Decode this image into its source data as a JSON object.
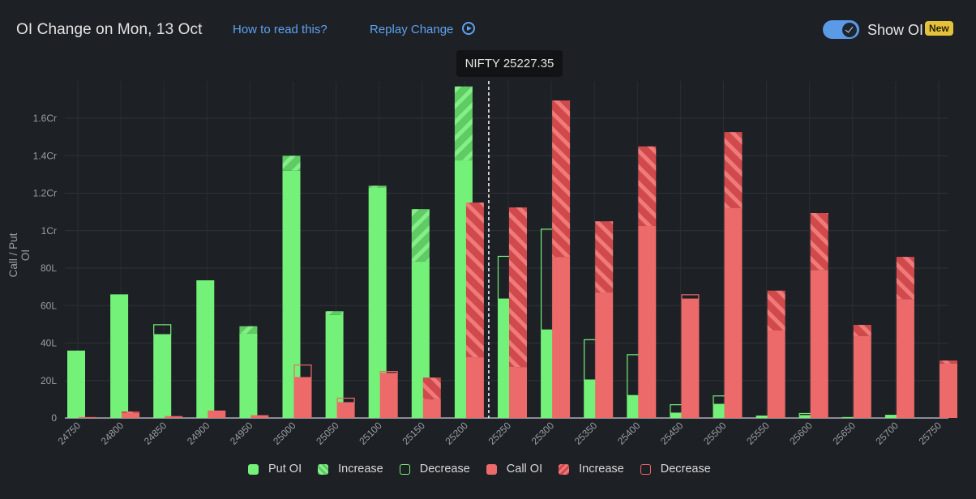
{
  "header": {
    "title": "OI Change on Mon, 13 Oct",
    "how_to_read": "How to read this?",
    "replay_change": "Replay Change",
    "replay_icon": "play-circle-icon",
    "toggle_label": "Show OI",
    "toggle_state": true,
    "badge": "New"
  },
  "tooltip": {
    "text": "NIFTY 25227.35"
  },
  "colors": {
    "put": "#74f178",
    "put_increase": "#5fcb63",
    "call": "#ec6a6a",
    "call_increase": "#d04a4c",
    "background": "#1d2025",
    "accent": "#5ea2f0",
    "badge": "#e6c23c"
  },
  "legend": [
    {
      "key": "put",
      "label": "Put OI"
    },
    {
      "key": "put-inc",
      "label": "Increase"
    },
    {
      "key": "put-dec",
      "label": "Decrease"
    },
    {
      "key": "call",
      "label": "Call OI"
    },
    {
      "key": "call-inc",
      "label": "Increase"
    },
    {
      "key": "call-dec",
      "label": "Decrease"
    }
  ],
  "chart_data": {
    "type": "bar",
    "title": "OI Change on Mon, 13 Oct",
    "xlabel": "",
    "ylabel": "Call / Put OI",
    "units": "lakh",
    "ylim": [
      0,
      180
    ],
    "yticks": [
      {
        "value": 0,
        "label": "0"
      },
      {
        "value": 20,
        "label": "20L"
      },
      {
        "value": 40,
        "label": "40L"
      },
      {
        "value": 60,
        "label": "60L"
      },
      {
        "value": 80,
        "label": "80L"
      },
      {
        "value": 100,
        "label": "1Cr"
      },
      {
        "value": 120,
        "label": "1.2Cr"
      },
      {
        "value": 140,
        "label": "1.4Cr"
      },
      {
        "value": 160,
        "label": "1.6Cr"
      }
    ],
    "grid": true,
    "spot": {
      "label": "NIFTY",
      "value": 25227.35
    },
    "categories": [
      "24750",
      "24800",
      "24850",
      "24900",
      "24950",
      "25000",
      "25050",
      "25100",
      "25150",
      "25200",
      "25250",
      "25300",
      "25350",
      "25400",
      "25450",
      "25500",
      "25550",
      "25600",
      "25650",
      "25700",
      "25750"
    ],
    "series": [
      {
        "name": "Put OI",
        "current": [
          36,
          66,
          44.5,
          73.5,
          49,
          140,
          57,
          124,
          111.5,
          177,
          63.5,
          47,
          20.3,
          12,
          2.6,
          7.3,
          1.3,
          1.3,
          0.5,
          1.7,
          0
        ],
        "previous": [
          36,
          66,
          50,
          73.5,
          45,
          132,
          55,
          123,
          83.5,
          137.5,
          86.5,
          101,
          42,
          34,
          7.3,
          12,
          1.3,
          2.6,
          0.5,
          1.7,
          0
        ]
      },
      {
        "name": "Call OI",
        "current": [
          0.5,
          3.5,
          1,
          4,
          1.5,
          21.6,
          8.2,
          23.8,
          21.6,
          115,
          112.4,
          169.5,
          105,
          145,
          63.5,
          152.6,
          68,
          109.4,
          49.7,
          86,
          30.7
        ],
        "previous": [
          0.5,
          2.6,
          1,
          4,
          1.5,
          28.5,
          10.8,
          25,
          10,
          32.4,
          27.2,
          86,
          67,
          102.5,
          66,
          112,
          46.7,
          79,
          43.7,
          63.5,
          29
        ]
      }
    ]
  }
}
